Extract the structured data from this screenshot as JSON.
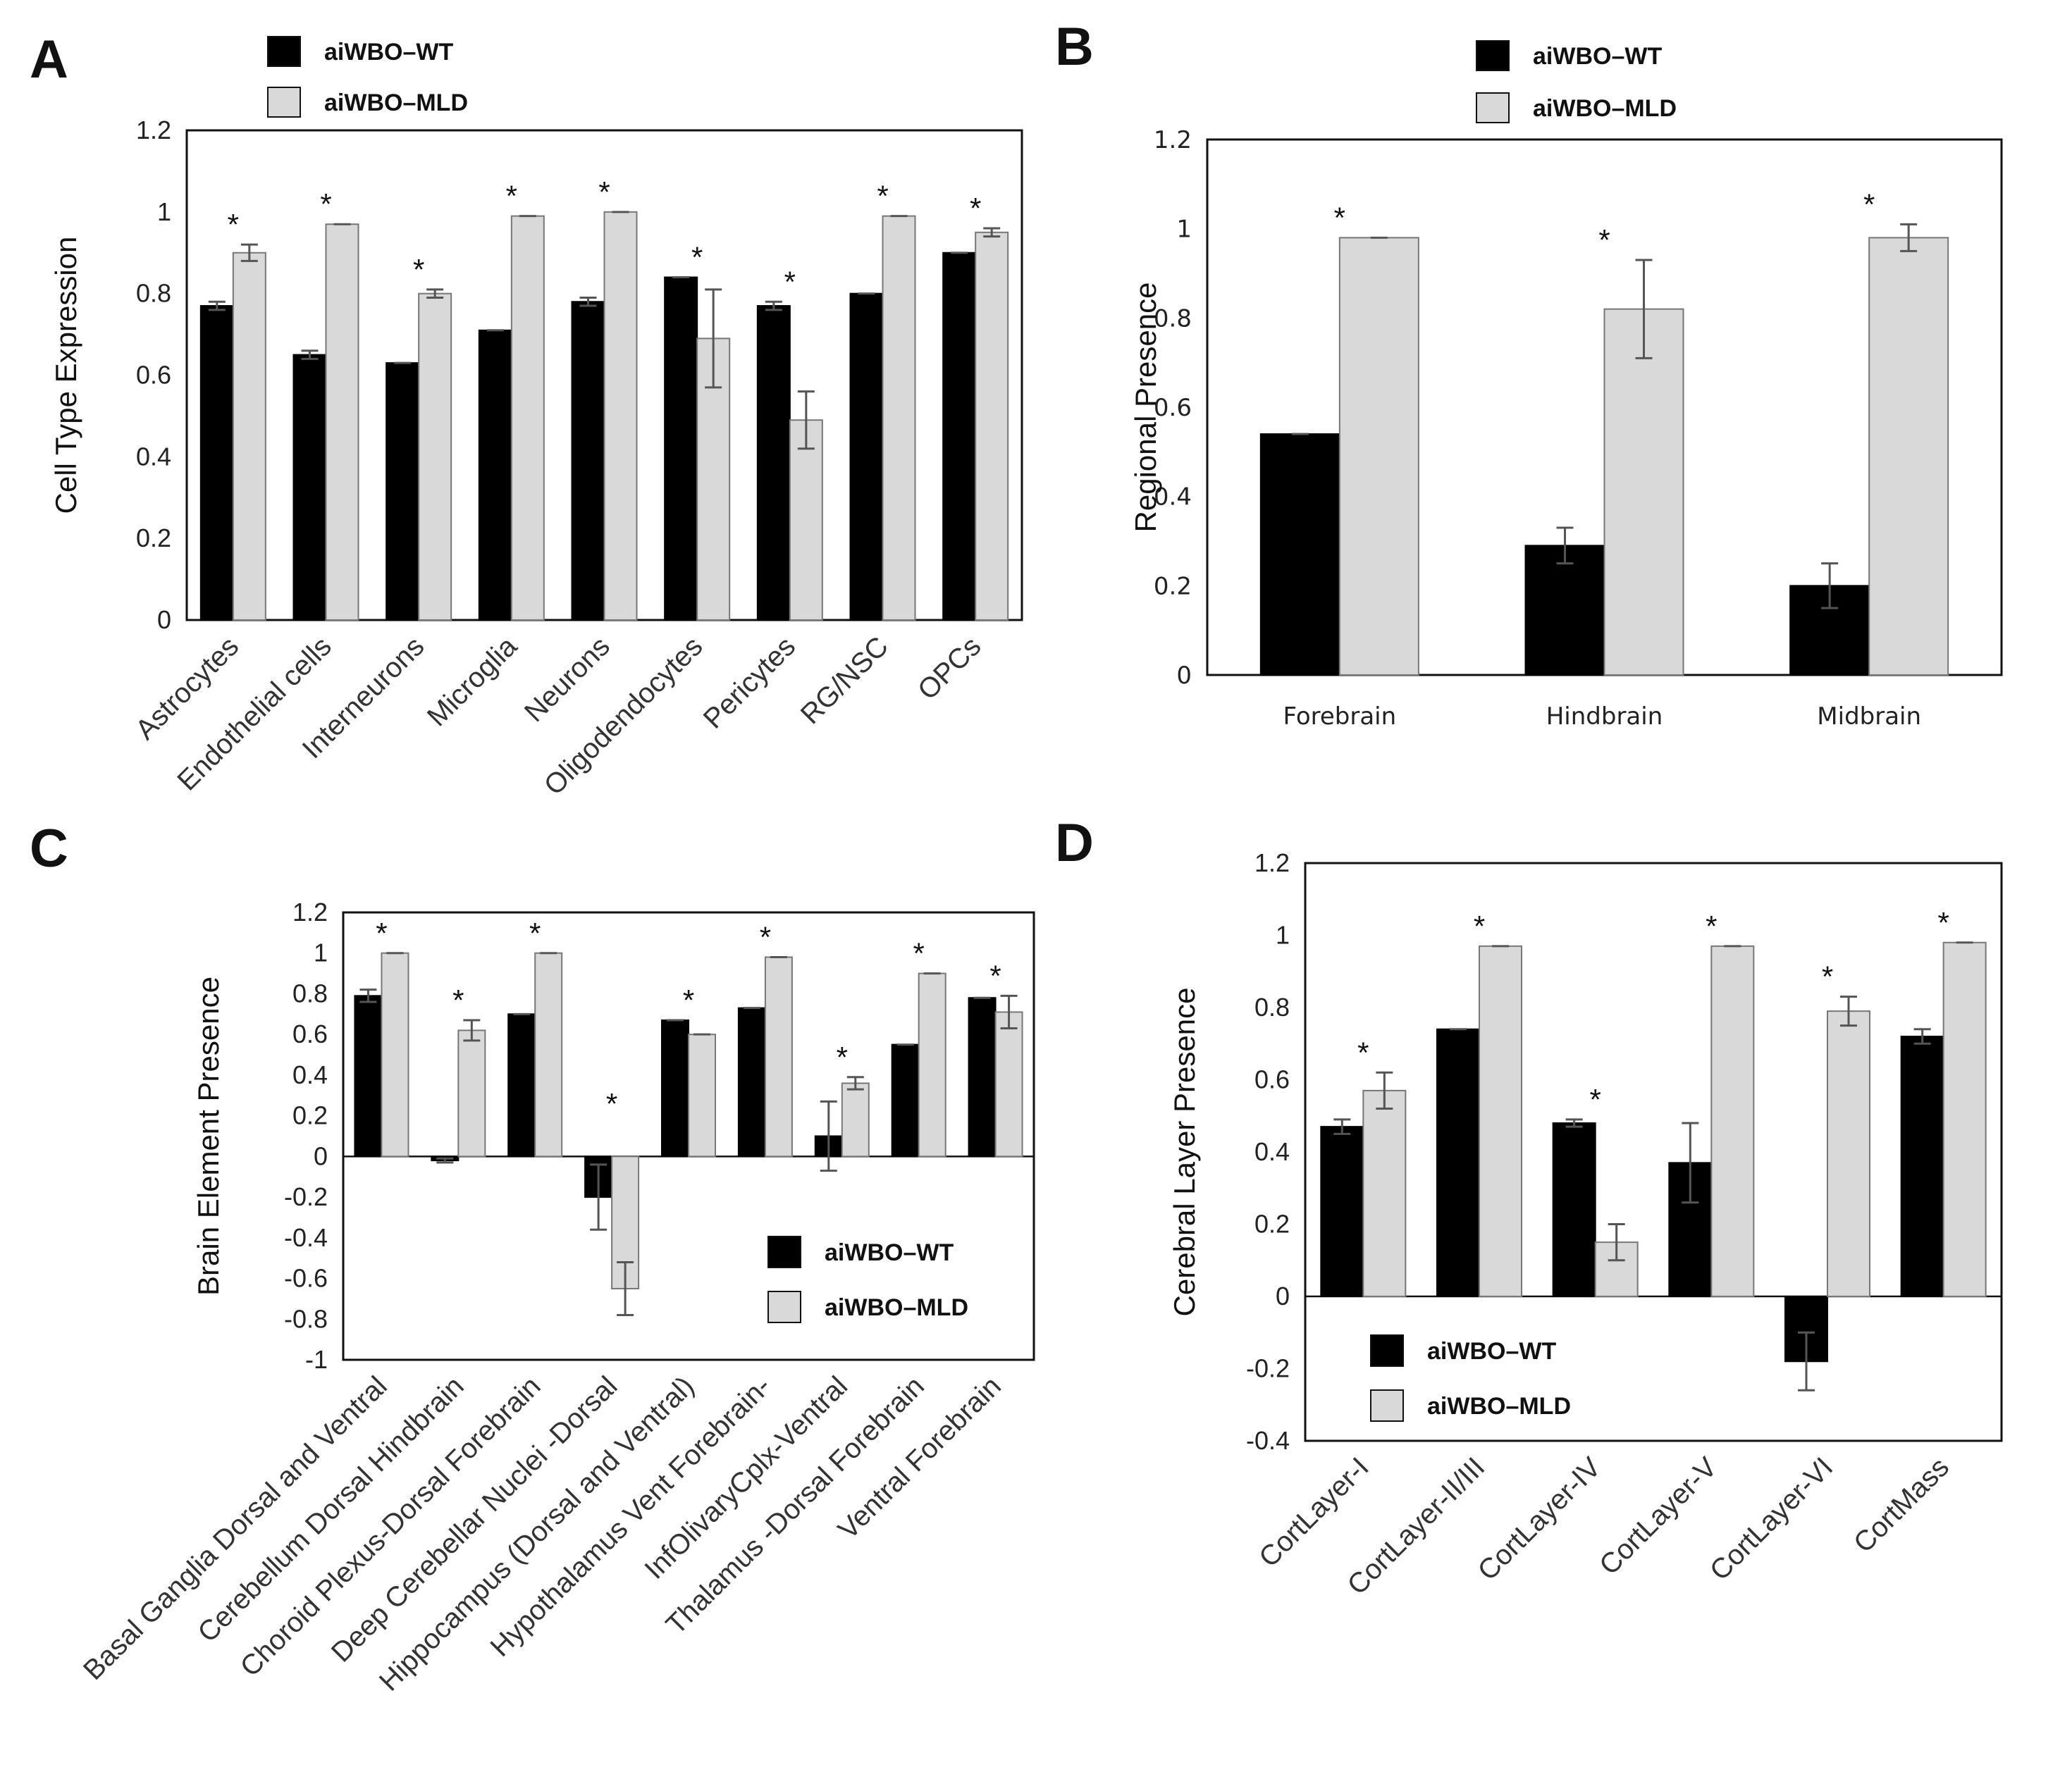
{
  "colors": {
    "wt": "#000000",
    "mld": "#d9d9d9",
    "mld_stroke": "#777777",
    "errorbar": "#555555"
  },
  "chart_data": [
    {
      "panel": "A",
      "type": "bar",
      "title": "",
      "xlabel": "",
      "ylabel": "Cell Type Expression",
      "ylim": [
        0,
        1.2
      ],
      "yticks": [
        "0",
        "0.2",
        "0.4",
        "0.6",
        "0.8",
        "1",
        "1.2"
      ],
      "legend": [
        "aiWBO–WT",
        "aiWBO–MLD"
      ],
      "legend_position": "top-left outside",
      "categories": [
        "Astrocytes",
        "Endothelial cells",
        "Interneurons",
        "Microglia",
        "Neurons",
        "Oligodendocytes",
        "Pericytes",
        "RG/NSC",
        "OPCs"
      ],
      "series": [
        {
          "name": "aiWBO–WT",
          "values": [
            0.77,
            0.65,
            0.63,
            0.71,
            0.78,
            0.84,
            0.77,
            0.8,
            0.9
          ],
          "errors": [
            0.01,
            0.01,
            0.0,
            0.0,
            0.01,
            0.0,
            0.01,
            0.0,
            0.0
          ]
        },
        {
          "name": "aiWBO–MLD",
          "values": [
            0.9,
            0.97,
            0.8,
            0.99,
            1.0,
            0.69,
            0.49,
            0.99,
            0.95
          ],
          "errors": [
            0.02,
            0.0,
            0.01,
            0.0,
            0.0,
            0.12,
            0.07,
            0.0,
            0.01
          ]
        }
      ],
      "significance": [
        "*",
        "*",
        "*",
        "*",
        "*",
        "*",
        "*",
        "*",
        "*"
      ]
    },
    {
      "panel": "B",
      "type": "bar",
      "title": "",
      "xlabel": "",
      "ylabel": "Regional Presence",
      "ylim": [
        0,
        1.2
      ],
      "yticks": [
        "0",
        "0.2",
        "0.4",
        "0.6",
        "0.8",
        "1",
        "1.2"
      ],
      "legend": [
        "aiWBO–WT",
        "aiWBO–MLD"
      ],
      "legend_position": "top-center outside",
      "categories": [
        "Forebrain",
        "Hindbrain",
        "Midbrain"
      ],
      "series": [
        {
          "name": "aiWBO–WT",
          "values": [
            0.54,
            0.29,
            0.2
          ],
          "errors": [
            0.0,
            0.04,
            0.05
          ]
        },
        {
          "name": "aiWBO–MLD",
          "values": [
            0.98,
            0.82,
            0.98
          ],
          "errors": [
            0.0,
            0.11,
            0.03
          ]
        }
      ],
      "significance": [
        "*",
        "*",
        "*"
      ]
    },
    {
      "panel": "C",
      "type": "bar",
      "title": "",
      "xlabel": "",
      "ylabel": "Brain Element Presence",
      "ylim": [
        -1,
        1.2
      ],
      "yticks": [
        "-1",
        "-0.8",
        "-0.6",
        "-0.4",
        "-0.2",
        "0",
        "0.2",
        "0.4",
        "0.6",
        "0.8",
        "1",
        "1.2"
      ],
      "legend": [
        "aiWBO–WT",
        "aiWBO–MLD"
      ],
      "legend_position": "bottom-right inside",
      "categories": [
        "Basal Ganglia Dorsal and Ventral",
        "Cerebellum Dorsal Hindbrain",
        "Choroid Plexus-Dorsal Forebrain",
        "Deep Cerebellar Nuclei -Dorsal",
        "Hippocampus (Dorsal and Ventral)",
        "Hypothalamus Vent Forebrain-",
        "InfOlivaryCplx-Ventral",
        "Thalamus -Dorsal Forebrain",
        "Ventral Forebrain"
      ],
      "series": [
        {
          "name": "aiWBO–WT",
          "values": [
            0.79,
            -0.02,
            0.7,
            -0.2,
            0.67,
            0.73,
            0.1,
            0.55,
            0.78
          ],
          "errors": [
            0.03,
            0.01,
            0.0,
            0.16,
            0.0,
            0.0,
            0.17,
            0.0,
            0.0
          ]
        },
        {
          "name": "aiWBO–MLD",
          "values": [
            1.0,
            0.62,
            1.0,
            -0.65,
            0.6,
            0.98,
            0.36,
            0.9,
            0.71
          ],
          "errors": [
            0.0,
            0.05,
            0.0,
            0.13,
            0.0,
            0.0,
            0.03,
            0.0,
            0.08
          ]
        }
      ],
      "significance": [
        "*",
        "*",
        "*",
        "*",
        "*",
        "*",
        "*",
        "*",
        "*"
      ]
    },
    {
      "panel": "D",
      "type": "bar",
      "title": "",
      "xlabel": "",
      "ylabel": "Cerebral Layer Presence",
      "ylim": [
        -0.4,
        1.2
      ],
      "yticks": [
        "-0.4",
        "-0.2",
        "0",
        "0.2",
        "0.4",
        "0.6",
        "0.8",
        "1",
        "1.2"
      ],
      "legend": [
        "aiWBO–WT",
        "aiWBO–MLD"
      ],
      "legend_position": "bottom-left inside",
      "categories": [
        "CortLayer-I",
        "CortLayer-II/III",
        "CortLayer-IV",
        "CortLayer-V",
        "CortLayer-VI",
        "CortMass"
      ],
      "series": [
        {
          "name": "aiWBO–WT",
          "values": [
            0.47,
            0.74,
            0.48,
            0.37,
            -0.18,
            0.72
          ],
          "errors": [
            0.02,
            0.0,
            0.01,
            0.11,
            0.08,
            0.02
          ]
        },
        {
          "name": "aiWBO–MLD",
          "values": [
            0.57,
            0.97,
            0.15,
            0.97,
            0.79,
            0.98
          ],
          "errors": [
            0.05,
            0.0,
            0.05,
            0.0,
            0.04,
            0.0
          ]
        }
      ],
      "significance": [
        "*",
        "*",
        "*",
        "*",
        "*",
        "*"
      ]
    }
  ]
}
